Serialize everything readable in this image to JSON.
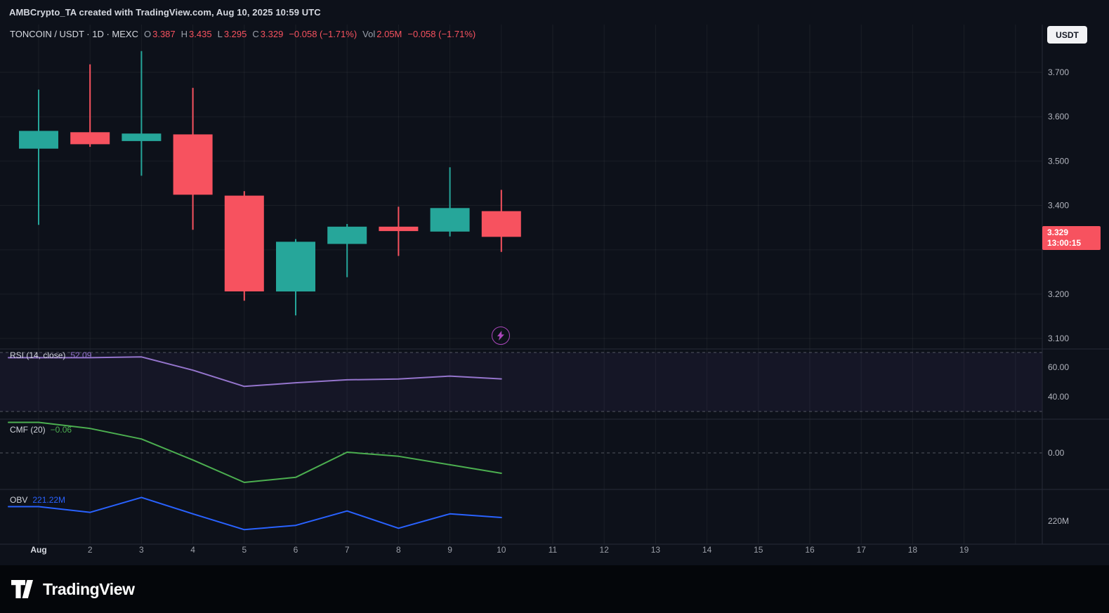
{
  "header": {
    "attribution": "AMBCrypto_TA created with TradingView.com, Aug 10, 2025 10:59 UTC"
  },
  "controls": {
    "currency_button": "USDT"
  },
  "symbol_bar": {
    "title": "TONCOIN / USDT · 1D · MEXC",
    "o_label": "O",
    "o": "3.387",
    "h_label": "H",
    "h": "3.435",
    "l_label": "L",
    "l": "3.295",
    "c_label": "C",
    "c": "3.329",
    "change": "−0.058 (−1.71%)",
    "vol_label": "Vol",
    "vol": "2.05M",
    "vol_change": "−0.058 (−1.71%)"
  },
  "footer": {
    "brand": "TradingView"
  },
  "colors": {
    "background": "#0d111a",
    "up": "#26a69a",
    "down": "#f7525f",
    "rsi_line": "#9575cd",
    "rsi_fill": "rgba(126,87,194,0.08)",
    "cmf_line": "#4caf50",
    "obv_line": "#2962ff",
    "grid": "rgba(255,255,255,0.055)",
    "separator": "#262b38",
    "dashed": "#8a8e99",
    "axis_text": "#b2b5be",
    "price_label_bg": "#f7525f",
    "event_marker": "#ab47bc"
  },
  "chart_data": [
    {
      "type": "candlestick",
      "symbol": "TONCOIN / USDT",
      "interval": "1D",
      "exchange": "MEXC",
      "x_labels": [
        "Aug",
        "2",
        "3",
        "4",
        "5",
        "6",
        "7",
        "8",
        "9",
        "10",
        "11",
        "12",
        "13",
        "14",
        "15",
        "16",
        "17",
        "18",
        "19"
      ],
      "y_ticks": [
        "3.700",
        "3.600",
        "3.500",
        "3.400",
        "3.200",
        "3.100"
      ],
      "ylim": [
        3.07,
        3.78
      ],
      "candles": [
        {
          "date": "Aug 1",
          "open": 3.528,
          "high": 3.661,
          "low": 3.356,
          "close": 3.568
        },
        {
          "date": "Aug 2",
          "open": 3.565,
          "high": 3.718,
          "low": 3.532,
          "close": 3.538
        },
        {
          "date": "Aug 3",
          "open": 3.545,
          "high": 3.748,
          "low": 3.467,
          "close": 3.562
        },
        {
          "date": "Aug 4",
          "open": 3.56,
          "high": 3.665,
          "low": 3.345,
          "close": 3.424
        },
        {
          "date": "Aug 5",
          "open": 3.422,
          "high": 3.432,
          "low": 3.185,
          "close": 3.206
        },
        {
          "date": "Aug 6",
          "open": 3.206,
          "high": 3.324,
          "low": 3.152,
          "close": 3.318
        },
        {
          "date": "Aug 7",
          "open": 3.313,
          "high": 3.358,
          "low": 3.238,
          "close": 3.352
        },
        {
          "date": "Aug 8",
          "open": 3.352,
          "high": 3.397,
          "low": 3.286,
          "close": 3.342
        },
        {
          "date": "Aug 9",
          "open": 3.341,
          "high": 3.486,
          "low": 3.33,
          "close": 3.394
        },
        {
          "date": "Aug 10",
          "open": 3.387,
          "high": 3.435,
          "low": 3.295,
          "close": 3.329
        }
      ],
      "last_price": "3.329",
      "countdown": "13:00:15",
      "event_marker": {
        "icon": "lightning",
        "date": "Aug 10"
      }
    },
    {
      "type": "line",
      "name": "RSI",
      "legend_title": "RSI (14, close)",
      "legend_value": "52.09",
      "bands": [
        70,
        30
      ],
      "y_ticks": [
        "60.00",
        "40.00"
      ],
      "x": [
        "Aug 1",
        "Aug 2",
        "Aug 3",
        "Aug 4",
        "Aug 5",
        "Aug 6",
        "Aug 7",
        "Aug 8",
        "Aug 9",
        "Aug 10"
      ],
      "values": [
        66.5,
        66.5,
        67,
        58,
        47,
        49.5,
        51.5,
        52,
        54,
        52.09
      ]
    },
    {
      "type": "line",
      "name": "CMF",
      "legend_title": "CMF (20)",
      "legend_value": "−0.06",
      "y_ticks": [
        "0.00"
      ],
      "x": [
        "Aug 1",
        "Aug 2",
        "Aug 3",
        "Aug 4",
        "Aug 5",
        "Aug 6",
        "Aug 7",
        "Aug 8",
        "Aug 9",
        "Aug 10"
      ],
      "values": [
        0.09,
        0.072,
        0.041,
        -0.021,
        -0.087,
        -0.072,
        0.002,
        -0.01,
        -0.035,
        -0.06
      ]
    },
    {
      "type": "line",
      "name": "OBV",
      "legend_title": "OBV",
      "legend_value": "221.22M",
      "unit": "M",
      "y_ticks": [
        "220M"
      ],
      "y_tick_values": [
        220
      ],
      "x": [
        "Aug 1",
        "Aug 2",
        "Aug 3",
        "Aug 4",
        "Aug 5",
        "Aug 6",
        "Aug 7",
        "Aug 8",
        "Aug 9",
        "Aug 10"
      ],
      "values": [
        225,
        223,
        228.2,
        222.5,
        217,
        218.5,
        223.5,
        217.5,
        222.5,
        221.22
      ]
    }
  ]
}
